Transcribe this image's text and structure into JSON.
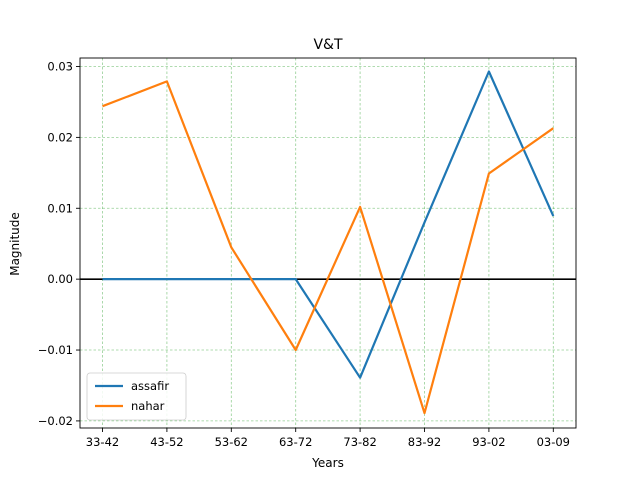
{
  "chart_data": {
    "type": "line",
    "title": "V&T",
    "xlabel": "Years",
    "ylabel": "Magnitude",
    "categories": [
      "33-42",
      "43-52",
      "53-62",
      "63-72",
      "73-82",
      "83-92",
      "93-02",
      "03-09"
    ],
    "ylim": [
      -0.021,
      0.0312
    ],
    "yticks": [
      -0.02,
      -0.01,
      0.0,
      0.01,
      0.02,
      0.03
    ],
    "ytick_labels": [
      "−0.02",
      "−0.01",
      "0.00",
      "0.01",
      "0.02",
      "0.03"
    ],
    "grid": true,
    "grid_color": "#2ca02c",
    "zero_line": true,
    "legend_position": "lower-left",
    "series": [
      {
        "name": "assafir",
        "color": "#1f77b4",
        "values": [
          0.0,
          0.0,
          0.0,
          0.0,
          -0.0139,
          0.008,
          0.0293,
          0.0089
        ]
      },
      {
        "name": "nahar",
        "color": "#ff7f0e",
        "values": [
          0.0244,
          0.0279,
          0.0045,
          -0.01,
          0.0102,
          -0.0189,
          0.0149,
          0.0213
        ]
      }
    ]
  }
}
